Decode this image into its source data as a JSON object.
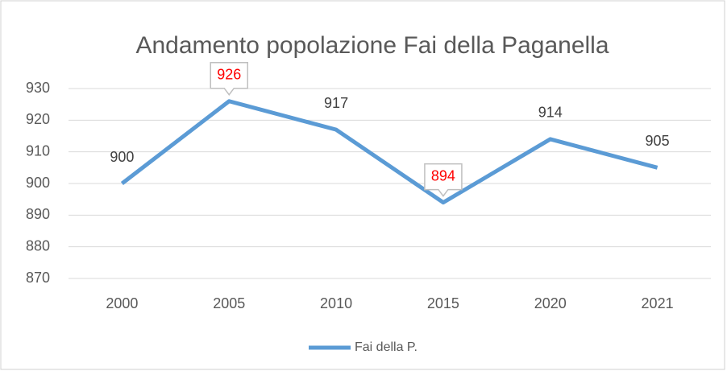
{
  "chart_data": {
    "type": "line",
    "title": "Andamento popolazione Fai della Paganella",
    "categories": [
      "2000",
      "2005",
      "2010",
      "2015",
      "2020",
      "2021"
    ],
    "series": [
      {
        "name": "Fai della P.",
        "color": "#5b9bd5",
        "values": [
          900,
          926,
          917,
          894,
          914,
          905
        ]
      }
    ],
    "value_label_colors": [
      "#404040",
      "#ff0000",
      "#404040",
      "#ff0000",
      "#404040",
      "#404040"
    ],
    "ylim": [
      870,
      930
    ],
    "yticks": [
      870,
      880,
      890,
      900,
      910,
      920,
      930
    ],
    "grid": true,
    "legend": "bottom"
  }
}
